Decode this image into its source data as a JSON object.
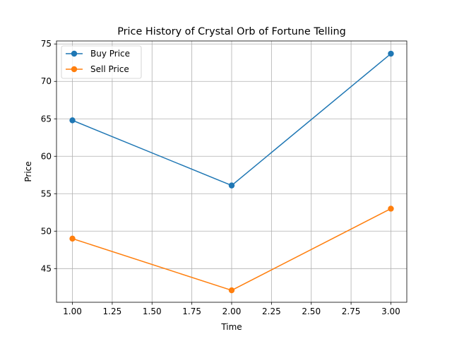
{
  "chart_data": {
    "type": "line",
    "title": "Price History of Crystal Orb of Fortune Telling",
    "xlabel": "Time",
    "ylabel": "Price",
    "x": [
      1,
      2,
      3
    ],
    "series": [
      {
        "name": "Buy Price",
        "values": [
          64.8,
          56.1,
          73.7
        ],
        "color": "#1f77b4",
        "marker": "circle"
      },
      {
        "name": "Sell Price",
        "values": [
          49.0,
          42.1,
          53.0
        ],
        "color": "#ff7f0e",
        "marker": "circle"
      }
    ],
    "xlim": [
      0.9,
      3.1
    ],
    "ylim": [
      40.5,
      75.4
    ],
    "xticks": [
      1.0,
      1.25,
      1.5,
      1.75,
      2.0,
      2.25,
      2.5,
      2.75,
      3.0
    ],
    "xtick_labels": [
      "1.00",
      "1.25",
      "1.50",
      "1.75",
      "2.00",
      "2.25",
      "2.50",
      "2.75",
      "3.00"
    ],
    "yticks": [
      45,
      50,
      55,
      60,
      65,
      70,
      75
    ],
    "ytick_labels": [
      "45",
      "50",
      "55",
      "60",
      "65",
      "70",
      "75"
    ],
    "grid": true,
    "legend_position": "top-left"
  }
}
